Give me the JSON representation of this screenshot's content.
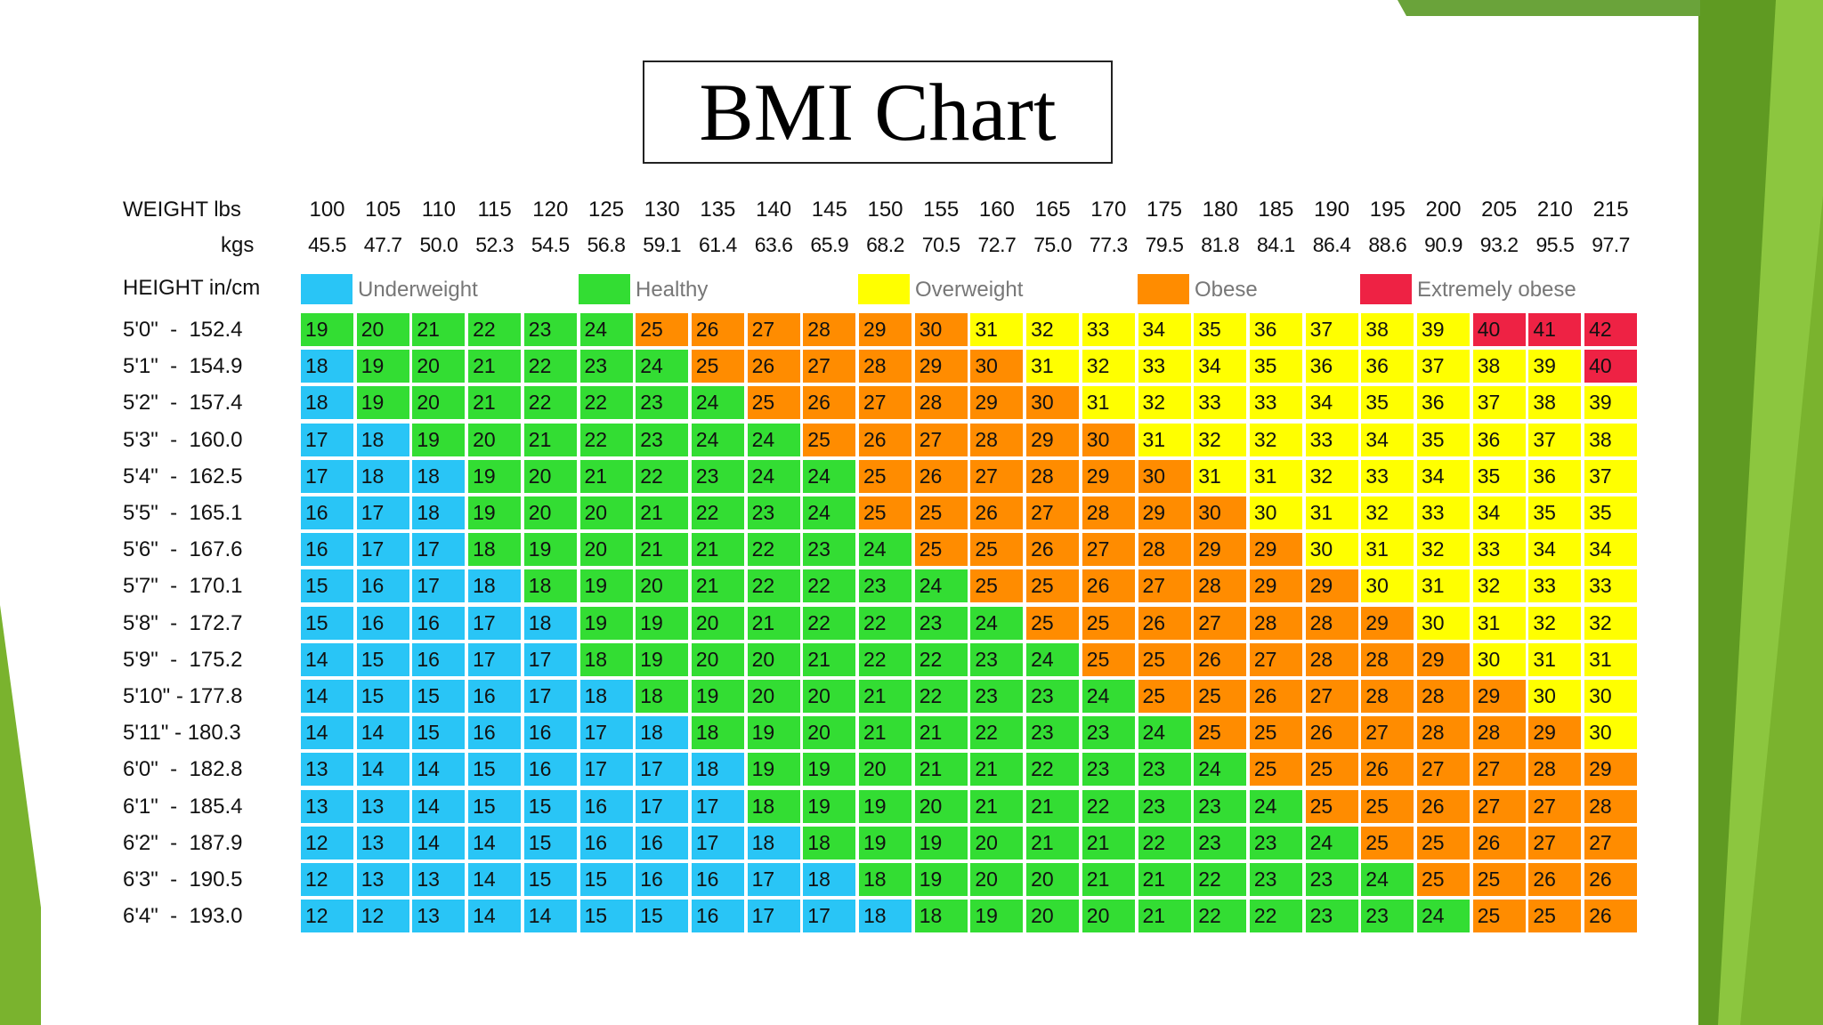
{
  "colors": {
    "underweight": "#29c5f6",
    "healthy": "#33dd33",
    "overweight": "#ffff00",
    "obese": "#ff8c00",
    "extremely_obese": "#ee2244",
    "slide_green": "#7ab32e"
  },
  "chart_data": {
    "type": "table",
    "title": "BMI Chart",
    "weight_header": "WEIGHT lbs",
    "kgs_header": "kgs",
    "height_header": "HEIGHT in/cm",
    "weights_lbs": [
      "100",
      "105",
      "110",
      "115",
      "120",
      "125",
      "130",
      "135",
      "140",
      "145",
      "150",
      "155",
      "160",
      "165",
      "170",
      "175",
      "180",
      "185",
      "190",
      "195",
      "200",
      "205",
      "210",
      "215"
    ],
    "weights_kgs": [
      "45.5",
      "47.7",
      "50.0",
      "52.3",
      "54.5",
      "56.8",
      "59.1",
      "61.4",
      "63.6",
      "65.9",
      "68.2",
      "70.5",
      "72.7",
      "75.0",
      "77.3",
      "79.5",
      "81.8",
      "84.1",
      "86.4",
      "88.6",
      "90.9",
      "93.2",
      "95.5",
      "97.7"
    ],
    "legend": [
      {
        "label": "Underweight",
        "category": "underweight"
      },
      {
        "label": "Healthy",
        "category": "healthy"
      },
      {
        "label": "Overweight",
        "category": "overweight"
      },
      {
        "label": "Obese",
        "category": "obese"
      },
      {
        "label": "Extremely obese",
        "category": "extremely_obese"
      }
    ],
    "rows": [
      {
        "height": "5'0\"  -  152.4",
        "values": [
          19,
          20,
          21,
          22,
          23,
          24,
          25,
          26,
          27,
          28,
          29,
          30,
          31,
          32,
          33,
          34,
          35,
          36,
          37,
          38,
          39,
          40,
          41,
          42
        ]
      },
      {
        "height": "5'1\"  -  154.9",
        "values": [
          18,
          19,
          20,
          21,
          22,
          23,
          24,
          25,
          26,
          27,
          28,
          29,
          30,
          31,
          32,
          33,
          34,
          35,
          36,
          36,
          37,
          38,
          39,
          40
        ]
      },
      {
        "height": "5'2\"  -  157.4",
        "values": [
          18,
          19,
          20,
          21,
          22,
          22,
          23,
          24,
          25,
          26,
          27,
          28,
          29,
          30,
          31,
          32,
          33,
          33,
          34,
          35,
          36,
          37,
          38,
          39
        ]
      },
      {
        "height": "5'3\"  -  160.0",
        "values": [
          17,
          18,
          19,
          20,
          21,
          22,
          23,
          24,
          24,
          25,
          26,
          27,
          28,
          29,
          30,
          31,
          32,
          32,
          33,
          34,
          35,
          36,
          37,
          38
        ]
      },
      {
        "height": "5'4\"  -  162.5",
        "values": [
          17,
          18,
          18,
          19,
          20,
          21,
          22,
          23,
          24,
          24,
          25,
          26,
          27,
          28,
          29,
          30,
          31,
          31,
          32,
          33,
          34,
          35,
          36,
          37
        ]
      },
      {
        "height": "5'5\"  -  165.1",
        "values": [
          16,
          17,
          18,
          19,
          20,
          20,
          21,
          22,
          23,
          24,
          25,
          25,
          26,
          27,
          28,
          29,
          30,
          30,
          31,
          32,
          33,
          34,
          35,
          35
        ]
      },
      {
        "height": "5'6\"  -  167.6",
        "values": [
          16,
          17,
          17,
          18,
          19,
          20,
          21,
          21,
          22,
          23,
          24,
          25,
          25,
          26,
          27,
          28,
          29,
          29,
          30,
          31,
          32,
          33,
          34,
          34
        ]
      },
      {
        "height": "5'7\"  -  170.1",
        "values": [
          15,
          16,
          17,
          18,
          18,
          19,
          20,
          21,
          22,
          22,
          23,
          24,
          25,
          25,
          26,
          27,
          28,
          29,
          29,
          30,
          31,
          32,
          33,
          33
        ]
      },
      {
        "height": "5'8\"  -  172.7",
        "values": [
          15,
          16,
          16,
          17,
          18,
          19,
          19,
          20,
          21,
          22,
          22,
          23,
          24,
          25,
          25,
          26,
          27,
          28,
          28,
          29,
          30,
          31,
          32,
          32
        ]
      },
      {
        "height": "5'9\"  -  175.2",
        "values": [
          14,
          15,
          16,
          17,
          17,
          18,
          19,
          20,
          20,
          21,
          22,
          22,
          23,
          24,
          25,
          25,
          26,
          27,
          28,
          28,
          29,
          30,
          31,
          31
        ]
      },
      {
        "height": "5'10\" - 177.8",
        "values": [
          14,
          15,
          15,
          16,
          17,
          18,
          18,
          19,
          20,
          20,
          21,
          22,
          23,
          23,
          24,
          25,
          25,
          26,
          27,
          28,
          28,
          29,
          30,
          30
        ]
      },
      {
        "height": "5'11\" - 180.3",
        "values": [
          14,
          14,
          15,
          16,
          16,
          17,
          18,
          18,
          19,
          20,
          21,
          21,
          22,
          23,
          23,
          24,
          25,
          25,
          26,
          27,
          28,
          28,
          29,
          30
        ]
      },
      {
        "height": "6'0\"  -  182.8",
        "values": [
          13,
          14,
          14,
          15,
          16,
          17,
          17,
          18,
          19,
          19,
          20,
          21,
          21,
          22,
          23,
          23,
          24,
          25,
          25,
          26,
          27,
          27,
          28,
          29
        ]
      },
      {
        "height": "6'1\"  -  185.4",
        "values": [
          13,
          13,
          14,
          15,
          15,
          16,
          17,
          17,
          18,
          19,
          19,
          20,
          21,
          21,
          22,
          23,
          23,
          24,
          25,
          25,
          26,
          27,
          27,
          28
        ]
      },
      {
        "height": "6'2\"  -  187.9",
        "values": [
          12,
          13,
          14,
          14,
          15,
          16,
          16,
          17,
          18,
          18,
          19,
          19,
          20,
          21,
          21,
          22,
          23,
          23,
          24,
          25,
          25,
          26,
          27,
          27
        ]
      },
      {
        "height": "6'3\"  -  190.5",
        "values": [
          12,
          13,
          13,
          14,
          15,
          15,
          16,
          16,
          17,
          18,
          18,
          19,
          20,
          20,
          21,
          21,
          22,
          23,
          23,
          24,
          25,
          25,
          26,
          26
        ]
      },
      {
        "height": "6'4\"  -  193.0",
        "values": [
          12,
          12,
          13,
          14,
          14,
          15,
          15,
          16,
          17,
          17,
          18,
          18,
          19,
          20,
          20,
          21,
          22,
          22,
          23,
          23,
          24,
          25,
          25,
          26
        ]
      }
    ],
    "row_categories": [
      "HHHHHHOOOOOOVVVVVVVVVEEE",
      "UHHHHHHOOOOOOVVVVVVVVVVE",
      "UHHHHHHHOOOOOOVVVVVVVVVV",
      "UUHHHHHHHOOOOOOVVVVVVVVV",
      "UUUHHHHHHHOOOOOOVVVVVVVV",
      "UUUHHHHHHHOOOOOOOVVVVVVV",
      "UUUHHHHHHHHOOOOOOOVVVVVV",
      "UUUUHHHHHHHHOOOOOOOVVVVV",
      "UUUUUHHHHHHHHOOOOOOOVVVV",
      "UUUUUHHHHHHHHHOOOOOOOVVV",
      "UUUUUUHHHHHHHHHOOOOOOOVV",
      "UUUUUUUHHHHHHHHHOOOOOOOV",
      "UUUUUUUUHHHHHHHHHOOOOOOO",
      "UUUUUUUUHHHHHHHHHHOOOOOO",
      "UUUUUUUUUHHHHHHHHHHOOOOO",
      "UUUUUUUUUUHHHHHHHHHHOOOO",
      "UUUUUUUUUUUHHHHHHHHHHOOO"
    ]
  }
}
